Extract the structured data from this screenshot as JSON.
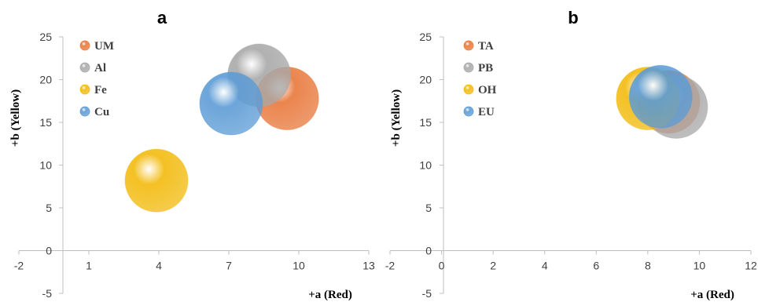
{
  "chart_data": [
    {
      "type": "bubble",
      "title": "a",
      "xlabel": "+a (Red)",
      "ylabel": "+b (Yellow)",
      "xlim": [
        -2,
        13
      ],
      "ylim": [
        -5,
        25
      ],
      "xticks": [
        -2,
        1,
        4,
        7,
        10,
        13
      ],
      "yticks": [
        -5,
        0,
        5,
        10,
        15,
        20,
        25
      ],
      "legend": "top-left",
      "series": [
        {
          "name": "UM",
          "x": 9.5,
          "y": 17.8,
          "color": "#E8773A"
        },
        {
          "name": "Al",
          "x": 8.3,
          "y": 20.5,
          "color": "#A8A8A8"
        },
        {
          "name": "Fe",
          "x": 3.9,
          "y": 8.2,
          "color": "#F2BA0C"
        },
        {
          "name": "Cu",
          "x": 7.1,
          "y": 17.2,
          "color": "#5B9BD5"
        }
      ]
    },
    {
      "type": "bubble",
      "title": "b",
      "xlabel": "+a (Red)",
      "ylabel": "+b (Yellow)",
      "xlim": [
        -2,
        12
      ],
      "ylim": [
        -5,
        25
      ],
      "xticks": [
        -2,
        0,
        2,
        4,
        6,
        8,
        10,
        12
      ],
      "yticks": [
        -5,
        0,
        5,
        10,
        15,
        20,
        25
      ],
      "legend": "top-left",
      "series": [
        {
          "name": "TA",
          "x": 8.8,
          "y": 17.4,
          "color": "#E8773A"
        },
        {
          "name": "PB",
          "x": 9.1,
          "y": 16.8,
          "color": "#A8A8A8"
        },
        {
          "name": "OH",
          "x": 8.0,
          "y": 17.8,
          "color": "#F2BA0C"
        },
        {
          "name": "EU",
          "x": 8.5,
          "y": 18.0,
          "color": "#5B9BD5"
        }
      ]
    }
  ]
}
